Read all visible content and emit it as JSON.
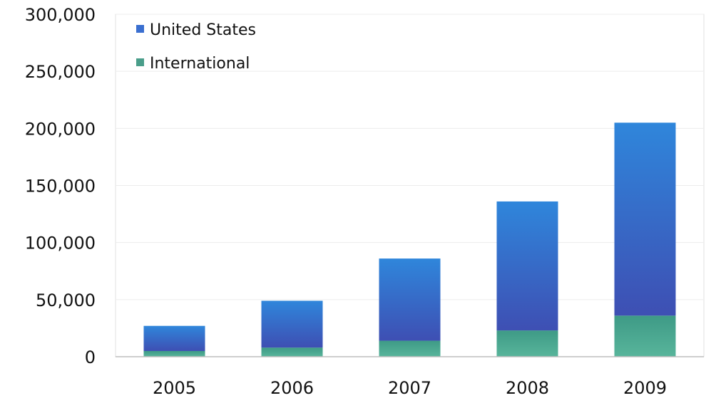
{
  "chart_data": {
    "type": "bar",
    "stacked": true,
    "categories": [
      "2005",
      "2006",
      "2007",
      "2008",
      "2009"
    ],
    "series": [
      {
        "name": "International",
        "values": [
          5000,
          8000,
          14000,
          23000,
          36000
        ],
        "color": "#4a9e8a"
      },
      {
        "name": "United States",
        "values": [
          22000,
          41000,
          72000,
          113000,
          169000
        ],
        "color": "#3a6fd0"
      }
    ],
    "legend_order": [
      "United States",
      "International"
    ],
    "yticks": [
      "0",
      "50,000",
      "100,000",
      "150,000",
      "200,000",
      "250,000",
      "300,000"
    ],
    "ylim": [
      0,
      300000
    ],
    "grid": true,
    "legend_position": "top-left"
  }
}
